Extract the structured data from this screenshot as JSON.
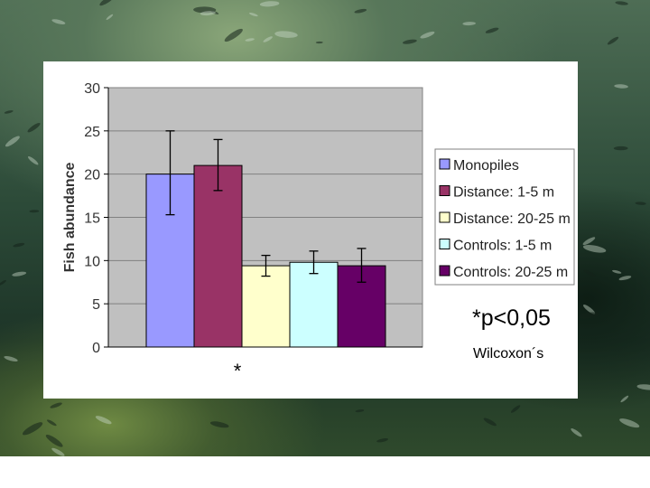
{
  "colors": {
    "plot_bg": "#C0C0C0",
    "gridline": "#808080",
    "series": [
      "#9999FF",
      "#993366",
      "#FFFFCC",
      "#CCFFFF",
      "#660066"
    ]
  },
  "chart_data": {
    "type": "bar",
    "ylabel": "Fish abundance",
    "xlabel": "",
    "ylim": [
      0,
      30
    ],
    "yticks": [
      "0",
      "5",
      "10",
      "15",
      "20",
      "25",
      "30"
    ],
    "grid": true,
    "legend_position": "right",
    "series": [
      {
        "name": "Monopiles",
        "value": 20,
        "error": [
          15.3,
          25
        ]
      },
      {
        "name": "Distance: 1-5 m",
        "value": 21,
        "error": [
          18.1,
          24
        ]
      },
      {
        "name": "Distance: 20-25 m",
        "value": 9.4,
        "error": [
          8.2,
          10.6
        ]
      },
      {
        "name": "Controls: 1-5 m",
        "value": 9.8,
        "error": [
          8.5,
          11.1
        ]
      },
      {
        "name": "Controls: 20-25 m",
        "value": 9.4,
        "error": [
          7.5,
          11.4
        ]
      }
    ],
    "annotations": {
      "marker": "*",
      "significance": "*p<0,05",
      "test": "Wilcoxon´s"
    }
  }
}
